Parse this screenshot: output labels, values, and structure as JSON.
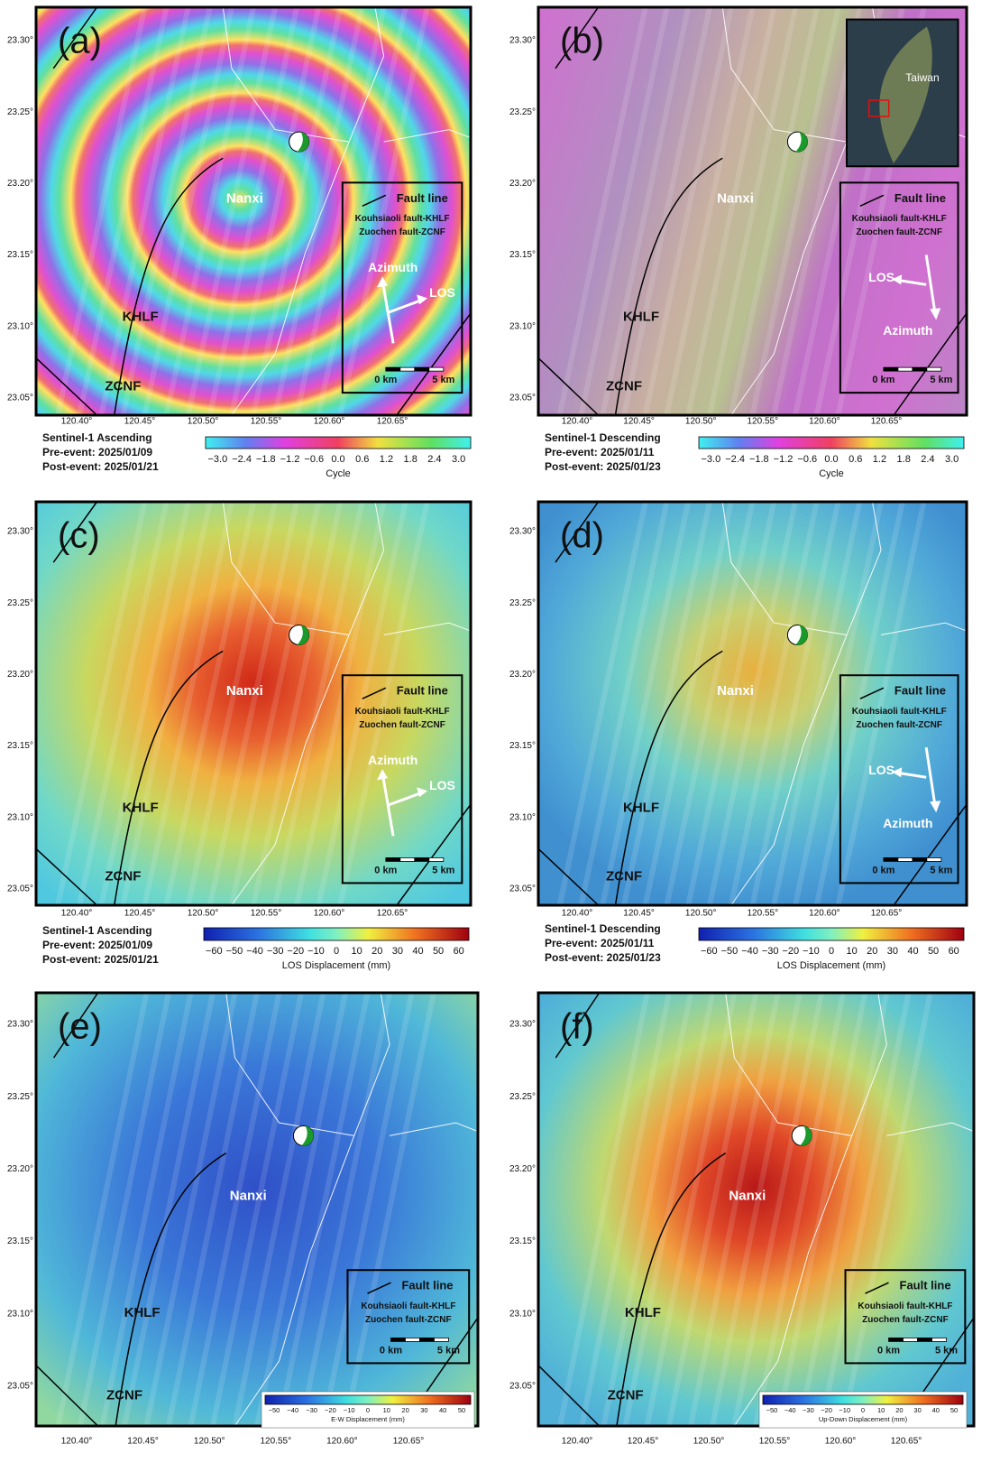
{
  "lat_ticks": [
    "23.30°",
    "23.25°",
    "23.20°",
    "23.15°",
    "23.10°",
    "23.05°"
  ],
  "lon_ticks": [
    "120.40°",
    "120.45°",
    "120.50°",
    "120.55°",
    "120.60°",
    "120.65°"
  ],
  "panels": [
    {
      "letter": "(a)",
      "places": [
        "Nanxi",
        "KHLF",
        "ZCNF"
      ],
      "legend": {
        "fault": "Fault line",
        "khlf": "Kouhsiaoli fault-KHLF",
        "zcnf": "Zuochen fault-ZCNF",
        "azimuth": "Azimuth",
        "los": "LOS",
        "scale": [
          "0 km",
          "5 km"
        ]
      },
      "caption": [
        "Sentinel-1 Ascending",
        "Pre-event: 2025/01/09",
        "Post-event: 2025/01/21"
      ],
      "colorbar": {
        "ticks": [
          "−3.0",
          "−2.4",
          "−1.8",
          "−1.2",
          "−0.6",
          "0.0",
          "0.6",
          "1.2",
          "1.8",
          "2.4",
          "3.0"
        ],
        "label": "Cycle"
      }
    },
    {
      "letter": "(b)",
      "places": [
        "Nanxi",
        "KHLF",
        "ZCNF"
      ],
      "inset": "Taiwan",
      "legend": {
        "fault": "Fault line",
        "khlf": "Kouhsiaoli fault-KHLF",
        "zcnf": "Zuochen fault-ZCNF",
        "azimuth": "Azimuth",
        "los": "LOS",
        "scale": [
          "0 km",
          "5 km"
        ]
      },
      "caption": [
        "Sentinel-1 Descending",
        "Pre-event: 2025/01/11",
        "Post-event: 2025/01/23"
      ],
      "colorbar": {
        "ticks": [
          "−3.0",
          "−2.4",
          "−1.8",
          "−1.2",
          "−0.6",
          "0.0",
          "0.6",
          "1.2",
          "1.8",
          "2.4",
          "3.0"
        ],
        "label": "Cycle"
      }
    },
    {
      "letter": "(c)",
      "places": [
        "Nanxi",
        "KHLF",
        "ZCNF"
      ],
      "legend": {
        "fault": "Fault line",
        "khlf": "Kouhsiaoli fault-KHLF",
        "zcnf": "Zuochen fault-ZCNF",
        "azimuth": "Azimuth",
        "los": "LOS",
        "scale": [
          "0 km",
          "5 km"
        ]
      },
      "caption": [
        "Sentinel-1 Ascending",
        "Pre-event: 2025/01/09",
        "Post-event: 2025/01/21"
      ],
      "colorbar": {
        "ticks": [
          "−60",
          "−50",
          "−40",
          "−30",
          "−20",
          "−10",
          "0",
          "10",
          "20",
          "30",
          "40",
          "50",
          "60"
        ],
        "label": "LOS Displacement (mm)"
      }
    },
    {
      "letter": "(d)",
      "places": [
        "Nanxi",
        "KHLF",
        "ZCNF"
      ],
      "legend": {
        "fault": "Fault line",
        "khlf": "Kouhsiaoli fault-KHLF",
        "zcnf": "Zuochen fault-ZCNF",
        "azimuth": "Azimuth",
        "los": "LOS",
        "scale": [
          "0 km",
          "5 km"
        ]
      },
      "caption": [
        "Sentinel-1 Descending",
        "Pre-event: 2025/01/11",
        "Post-event: 2025/01/23"
      ],
      "colorbar": {
        "ticks": [
          "−60",
          "−50",
          "−40",
          "−30",
          "−20",
          "−10",
          "0",
          "10",
          "20",
          "30",
          "40",
          "50",
          "60"
        ],
        "label": "LOS Displacement (mm)"
      }
    },
    {
      "letter": "(e)",
      "places": [
        "Nanxi",
        "KHLF",
        "ZCNF"
      ],
      "legend": {
        "fault": "Fault line",
        "khlf": "Kouhsiaoli fault-KHLF",
        "zcnf": "Zuochen fault-ZCNF",
        "scale": [
          "0 km",
          "5 km"
        ]
      },
      "colorbar": {
        "ticks": [
          "−50",
          "−40",
          "−30",
          "−20",
          "−10",
          "0",
          "10",
          "20",
          "30",
          "40",
          "50"
        ],
        "label": "E-W Displacement (mm)"
      }
    },
    {
      "letter": "(f)",
      "places": [
        "Nanxi",
        "KHLF",
        "ZCNF"
      ],
      "legend": {
        "fault": "Fault line",
        "khlf": "Kouhsiaoli fault-KHLF",
        "zcnf": "Zuochen fault-ZCNF",
        "scale": [
          "0 km",
          "5 km"
        ]
      },
      "colorbar": {
        "ticks": [
          "−50",
          "−40",
          "−30",
          "−20",
          "−10",
          "0",
          "10",
          "20",
          "30",
          "40",
          "50"
        ],
        "label": "Up-Down Displacement (mm)"
      }
    }
  ]
}
